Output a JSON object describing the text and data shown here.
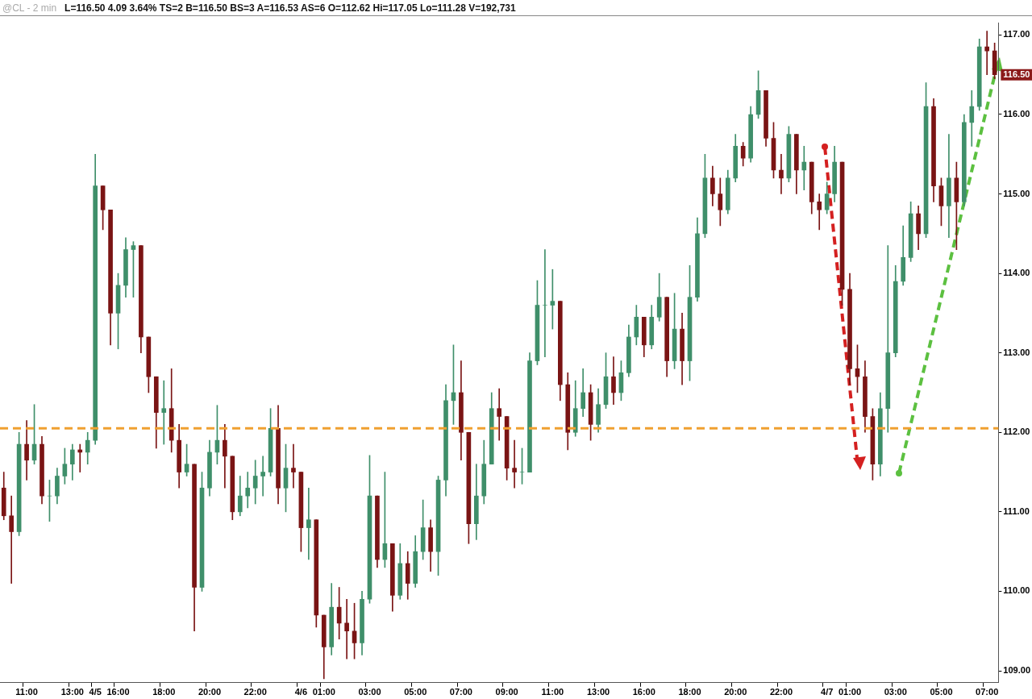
{
  "chart_data": {
    "type": "candlestick",
    "title": "@CL - 2 min",
    "subtitle": "L=116.50 4.09 3.64% TS=2 B=116.50 BS=3 A=116.53 AS=6 O=112.62 Hi=117.05 Lo=111.28 V=192,731",
    "categories": [
      null,
      null,
      null,
      "11:00",
      null,
      null,
      null,
      null,
      null,
      "13:00",
      null,
      null,
      "4/5",
      null,
      null,
      "16:00",
      null,
      null,
      null,
      null,
      null,
      "18:00",
      null,
      null,
      null,
      null,
      null,
      "20:00",
      null,
      null,
      null,
      null,
      null,
      "22:00",
      null,
      null,
      null,
      null,
      null,
      "4/6",
      null,
      null,
      "01:00",
      null,
      null,
      null,
      null,
      null,
      "03:00",
      null,
      null,
      null,
      null,
      null,
      "05:00",
      null,
      null,
      null,
      null,
      null,
      "07:00",
      null,
      null,
      null,
      null,
      null,
      "09:00",
      null,
      null,
      null,
      null,
      null,
      "11:00",
      null,
      null,
      null,
      null,
      null,
      "13:00",
      null,
      null,
      null,
      null,
      null,
      "16:00",
      null,
      null,
      null,
      null,
      null,
      "18:00",
      null,
      null,
      null,
      null,
      null,
      "20:00",
      null,
      null,
      null,
      null,
      null,
      "22:00",
      null,
      null,
      null,
      null,
      null,
      "4/7",
      null,
      null,
      "01:00",
      null,
      null,
      null,
      null,
      null,
      "03:00",
      null,
      null,
      null,
      null,
      null,
      "05:00",
      null,
      null,
      null,
      null,
      null,
      "07:00",
      null
    ],
    "ohlc": [
      [
        111.3,
        111.5,
        110.9,
        110.95
      ],
      [
        110.95,
        111.2,
        110.1,
        110.75
      ],
      [
        110.75,
        112.0,
        110.7,
        111.85
      ],
      [
        111.85,
        112.15,
        111.4,
        111.65
      ],
      [
        111.65,
        112.35,
        111.6,
        111.85
      ],
      [
        111.85,
        111.95,
        111.1,
        111.2
      ],
      [
        111.2,
        111.4,
        110.88,
        111.2
      ],
      [
        111.2,
        111.55,
        111.1,
        111.45
      ],
      [
        111.45,
        111.8,
        111.35,
        111.6
      ],
      [
        111.6,
        111.85,
        111.4,
        111.78
      ],
      [
        111.78,
        111.85,
        111.5,
        111.75
      ],
      [
        111.75,
        112.0,
        111.6,
        111.9
      ],
      [
        111.9,
        115.5,
        111.85,
        115.1
      ],
      [
        115.1,
        115.1,
        114.55,
        114.8
      ],
      [
        114.8,
        114.8,
        113.1,
        113.5
      ],
      [
        113.5,
        114.0,
        113.05,
        113.85
      ],
      [
        113.85,
        114.45,
        113.7,
        114.3
      ],
      [
        114.3,
        114.4,
        113.7,
        114.35
      ],
      [
        114.35,
        114.35,
        113.0,
        113.2
      ],
      [
        113.2,
        113.2,
        112.5,
        112.7
      ],
      [
        112.7,
        112.7,
        111.8,
        112.25
      ],
      [
        112.25,
        112.65,
        111.85,
        112.3
      ],
      [
        112.3,
        112.8,
        111.75,
        111.9
      ],
      [
        111.9,
        112.1,
        111.3,
        111.5
      ],
      [
        111.5,
        111.85,
        111.45,
        111.6
      ],
      [
        111.6,
        111.6,
        109.5,
        110.05
      ],
      [
        110.05,
        111.5,
        110.0,
        111.3
      ],
      [
        111.3,
        111.9,
        111.2,
        111.75
      ],
      [
        111.75,
        112.34,
        111.6,
        111.9
      ],
      [
        111.9,
        112.1,
        111.3,
        111.7
      ],
      [
        111.7,
        111.7,
        110.9,
        111.0
      ],
      [
        111.0,
        111.45,
        110.95,
        111.2
      ],
      [
        111.2,
        111.5,
        111.05,
        111.3
      ],
      [
        111.3,
        111.65,
        111.1,
        111.45
      ],
      [
        111.45,
        111.7,
        111.2,
        111.5
      ],
      [
        111.5,
        112.3,
        111.45,
        112.05
      ],
      [
        112.05,
        112.34,
        111.1,
        111.3
      ],
      [
        111.3,
        111.85,
        111.0,
        111.55
      ],
      [
        111.55,
        111.85,
        111.3,
        111.5
      ],
      [
        111.5,
        111.5,
        110.5,
        110.8
      ],
      [
        110.8,
        111.3,
        110.4,
        110.9
      ],
      [
        110.9,
        110.9,
        109.55,
        109.7
      ],
      [
        109.7,
        109.7,
        108.9,
        109.3
      ],
      [
        109.3,
        110.1,
        109.2,
        109.8
      ],
      [
        109.8,
        110.05,
        109.4,
        109.6
      ],
      [
        109.6,
        109.9,
        109.15,
        109.5
      ],
      [
        109.5,
        109.85,
        109.15,
        109.35
      ],
      [
        109.35,
        110.0,
        109.2,
        109.9
      ],
      [
        109.9,
        111.71,
        109.85,
        111.2
      ],
      [
        111.2,
        111.2,
        110.3,
        110.4
      ],
      [
        110.4,
        111.5,
        110.3,
        110.6
      ],
      [
        110.6,
        110.6,
        109.75,
        109.95
      ],
      [
        109.95,
        110.6,
        109.9,
        110.35
      ],
      [
        110.35,
        110.5,
        109.9,
        110.1
      ],
      [
        110.1,
        110.7,
        110.05,
        110.5
      ],
      [
        110.5,
        111.15,
        110.4,
        110.8
      ],
      [
        110.8,
        110.9,
        110.25,
        110.5
      ],
      [
        110.5,
        111.45,
        110.2,
        111.4
      ],
      [
        111.4,
        112.6,
        111.2,
        112.4
      ],
      [
        112.4,
        113.1,
        112.1,
        112.5
      ],
      [
        112.5,
        112.9,
        111.65,
        112.0
      ],
      [
        112.0,
        112.0,
        110.6,
        110.85
      ],
      [
        110.85,
        111.6,
        110.65,
        111.2
      ],
      [
        111.2,
        111.9,
        111.1,
        111.6
      ],
      [
        111.6,
        112.5,
        111.6,
        112.3
      ],
      [
        112.3,
        112.55,
        111.9,
        112.2
      ],
      [
        112.2,
        112.2,
        111.4,
        111.55
      ],
      [
        111.55,
        111.9,
        111.3,
        111.5
      ],
      [
        111.5,
        111.8,
        111.35,
        111.5
      ],
      [
        111.5,
        113.0,
        111.5,
        112.9
      ],
      [
        112.9,
        113.91,
        112.85,
        113.6
      ],
      [
        113.6,
        114.3,
        112.95,
        113.6
      ],
      [
        113.6,
        114.05,
        113.3,
        113.65
      ],
      [
        113.65,
        113.65,
        112.4,
        112.6
      ],
      [
        112.6,
        112.75,
        111.78,
        112.0
      ],
      [
        112.0,
        112.65,
        111.95,
        112.3
      ],
      [
        112.3,
        112.8,
        112.2,
        112.5
      ],
      [
        112.5,
        112.6,
        111.9,
        112.1
      ],
      [
        112.1,
        112.55,
        112.0,
        112.35
      ],
      [
        112.35,
        113.0,
        112.3,
        112.7
      ],
      [
        112.7,
        112.95,
        112.35,
        112.5
      ],
      [
        112.5,
        112.9,
        112.4,
        112.75
      ],
      [
        112.75,
        113.35,
        112.7,
        113.2
      ],
      [
        113.2,
        113.6,
        113.1,
        113.45
      ],
      [
        113.45,
        113.45,
        112.95,
        113.1
      ],
      [
        113.1,
        113.6,
        113.05,
        113.45
      ],
      [
        113.45,
        114.0,
        113.4,
        113.7
      ],
      [
        113.7,
        113.7,
        112.7,
        112.9
      ],
      [
        112.9,
        113.75,
        112.8,
        113.3
      ],
      [
        113.3,
        113.5,
        112.6,
        112.9
      ],
      [
        112.9,
        114.1,
        112.65,
        113.7
      ],
      [
        113.7,
        114.7,
        113.65,
        114.5
      ],
      [
        114.5,
        115.5,
        114.45,
        115.2
      ],
      [
        115.2,
        115.35,
        114.85,
        115.0
      ],
      [
        115.0,
        115.2,
        114.6,
        114.8
      ],
      [
        114.8,
        115.3,
        114.75,
        115.2
      ],
      [
        115.2,
        115.75,
        115.15,
        115.6
      ],
      [
        115.6,
        115.65,
        115.35,
        115.45
      ],
      [
        115.45,
        116.1,
        115.4,
        116.0
      ],
      [
        116.0,
        116.55,
        115.95,
        116.3
      ],
      [
        116.3,
        116.3,
        115.6,
        115.7
      ],
      [
        115.7,
        115.9,
        115.2,
        115.3
      ],
      [
        115.3,
        115.5,
        115.0,
        115.2
      ],
      [
        115.2,
        115.85,
        115.15,
        115.75
      ],
      [
        115.75,
        115.75,
        115.0,
        115.3
      ],
      [
        115.3,
        115.6,
        115.05,
        115.4
      ],
      [
        115.4,
        115.4,
        114.75,
        114.9
      ],
      [
        114.9,
        115.0,
        114.55,
        114.8
      ],
      [
        114.8,
        115.15,
        114.75,
        115.0
      ],
      [
        115.0,
        115.6,
        114.9,
        115.4
      ],
      [
        115.4,
        115.4,
        113.6,
        113.8
      ],
      [
        113.8,
        114.0,
        112.6,
        112.8
      ],
      [
        112.8,
        113.1,
        112.5,
        112.7
      ],
      [
        112.7,
        112.9,
        112.0,
        112.2
      ],
      [
        112.2,
        112.3,
        111.4,
        111.6
      ],
      [
        111.6,
        112.5,
        111.45,
        112.3
      ],
      [
        112.3,
        114.35,
        112.0,
        113.0
      ],
      [
        113.0,
        114.1,
        112.95,
        113.9
      ],
      [
        113.9,
        114.6,
        113.85,
        114.2
      ],
      [
        114.2,
        114.9,
        114.15,
        114.75
      ],
      [
        114.75,
        114.85,
        114.3,
        114.5
      ],
      [
        114.5,
        116.4,
        114.45,
        116.1
      ],
      [
        116.1,
        116.2,
        114.9,
        115.1
      ],
      [
        115.1,
        115.2,
        114.6,
        114.85
      ],
      [
        114.85,
        115.75,
        114.45,
        115.2
      ],
      [
        115.2,
        115.4,
        114.3,
        114.9
      ],
      [
        114.9,
        116.0,
        114.85,
        115.9
      ],
      [
        115.9,
        116.3,
        115.6,
        116.1
      ],
      [
        116.1,
        116.95,
        116.05,
        116.85
      ],
      [
        116.85,
        117.05,
        116.5,
        116.8
      ],
      [
        116.8,
        116.9,
        116.45,
        116.5
      ]
    ],
    "ylim": [
      108.85,
      117.15
    ],
    "yticks": [
      {
        "value": 109,
        "label": "109.00"
      },
      {
        "value": 110,
        "label": "110.00"
      },
      {
        "value": 111,
        "label": "111.00"
      },
      {
        "value": 112,
        "label": "112.00"
      },
      {
        "value": 113,
        "label": "113.00"
      },
      {
        "value": 114,
        "label": "114.00"
      },
      {
        "value": 115,
        "label": "115.00"
      },
      {
        "value": 116,
        "label": "116.00"
      },
      {
        "value": 117,
        "label": "117.00"
      }
    ],
    "ref_lines": [
      {
        "axis": "y",
        "value": 112.05,
        "label": null,
        "color": "#f0a030",
        "line_style": "dashed"
      }
    ],
    "annotations": [
      {
        "text": "116.50",
        "y": 116.5
      }
    ],
    "legend": false
  }
}
